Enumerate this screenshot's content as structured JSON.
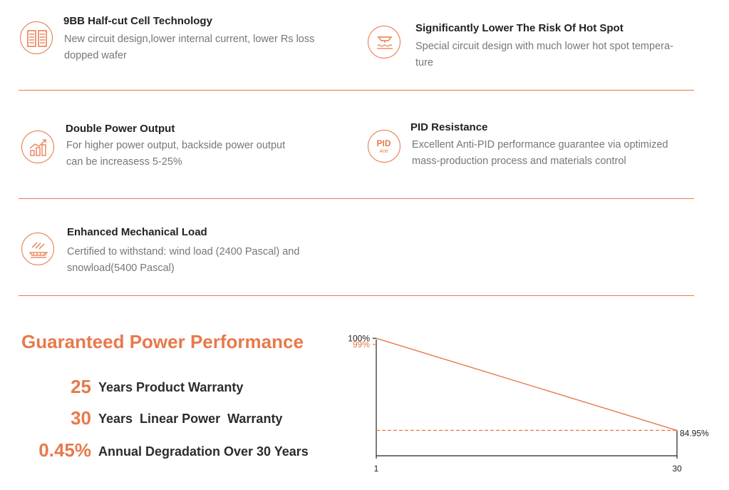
{
  "features": [
    {
      "id": "half-cut",
      "icon": "half-cut-cell-icon",
      "title": "9BB Half-cut Cell Technology",
      "desc": [
        "New circuit design,lower internal current, lower Rs loss",
        "dopped wafer"
      ]
    },
    {
      "id": "hot-spot",
      "icon": "hot-spot-icon",
      "title": "Significantly Lower The Risk Of Hot Spot",
      "desc": [
        "Special circuit design with much lower hot spot tempera-",
        "ture"
      ]
    },
    {
      "id": "double-power",
      "icon": "power-growth-chart-icon",
      "title": "Double Power Output",
      "desc": [
        "For higher power output, backside power output",
        "can be increasess 5-25%"
      ]
    },
    {
      "id": "pid",
      "icon": "pid-anti-icon",
      "icon_text": "PID",
      "icon_subtext": "Anti",
      "title": "PID Resistance",
      "desc": [
        "Excellent Anti-PID performance guarantee via optimized",
        "mass-production process and materials control"
      ]
    },
    {
      "id": "mechanical",
      "icon": "mechanical-load-icon",
      "title": "Enhanced Mechanical Load",
      "desc": [
        "Certified to withstand: wind load (2400 Pascal) and",
        "snowload(5400 Pascal)"
      ]
    }
  ],
  "performance": {
    "title": "Guaranteed Power Performance",
    "warranties": [
      {
        "value": "25",
        "label": "Years Product Warranty"
      },
      {
        "value": "30",
        "label": "Years  Linear Power  Warranty"
      },
      {
        "value": "0.45%",
        "label": "Annual Degradation Over 30 Years"
      }
    ]
  },
  "chart_data": {
    "type": "line",
    "x": [
      1,
      30
    ],
    "series": [
      {
        "values": [
          100,
          84.95
        ]
      }
    ],
    "reference_line": 84.95,
    "xticks": [
      "1",
      "30"
    ],
    "yticks": [
      {
        "value": 100,
        "label": "100%"
      },
      {
        "value": 99,
        "label": "99%"
      }
    ],
    "end_label": "84.95%",
    "ylim": [
      80.8,
      100.5
    ],
    "xlim": [
      1,
      30
    ],
    "line_color": "#e8794a",
    "axis_color": "#222222",
    "highlight_tick_color": "#e8794a"
  }
}
